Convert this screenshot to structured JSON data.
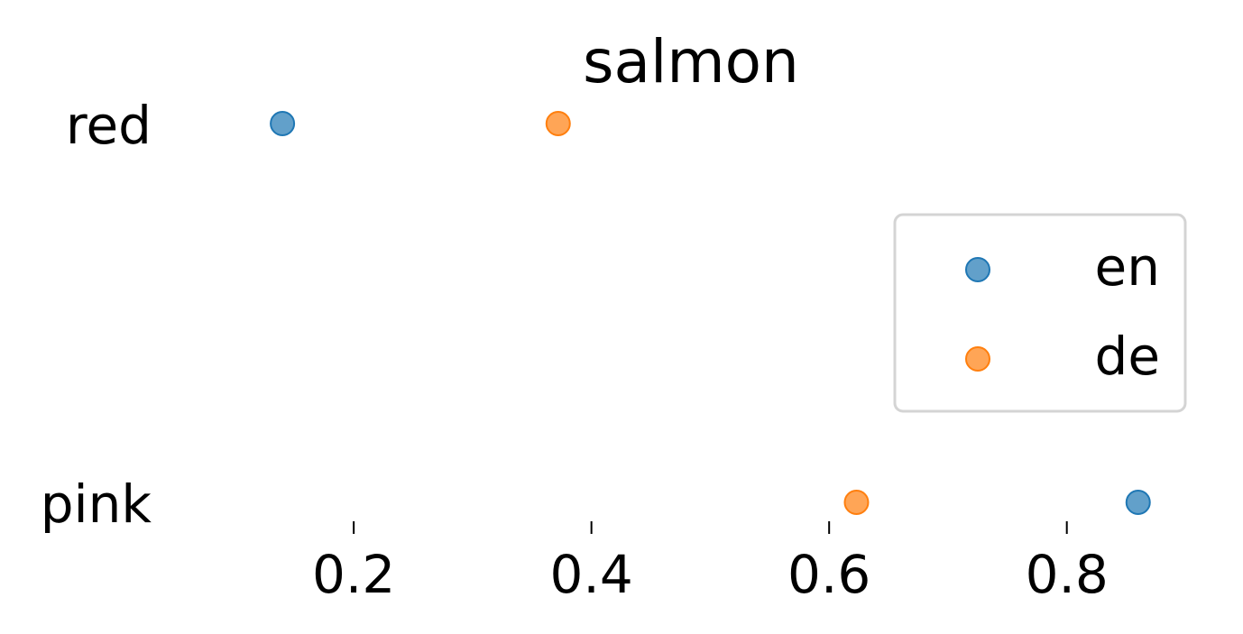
{
  "chart_data": {
    "type": "scatter",
    "title": "salmon",
    "xlabel": "",
    "ylabel": "",
    "categories": [
      "red",
      "pink"
    ],
    "series": [
      {
        "name": "en",
        "color": "#1f77b4",
        "values": [
          0.14,
          0.86
        ]
      },
      {
        "name": "de",
        "color": "#ff7f0e",
        "values": [
          0.372,
          0.623
        ]
      }
    ],
    "xticks": [
      "0.2",
      "0.4",
      "0.6",
      "0.8"
    ],
    "xtick_values": [
      0.2,
      0.4,
      0.6,
      0.8
    ],
    "xlim": [
      0.083,
      0.886
    ],
    "grid": false,
    "legend": {
      "position": "right",
      "entries": [
        "en",
        "de"
      ]
    }
  }
}
